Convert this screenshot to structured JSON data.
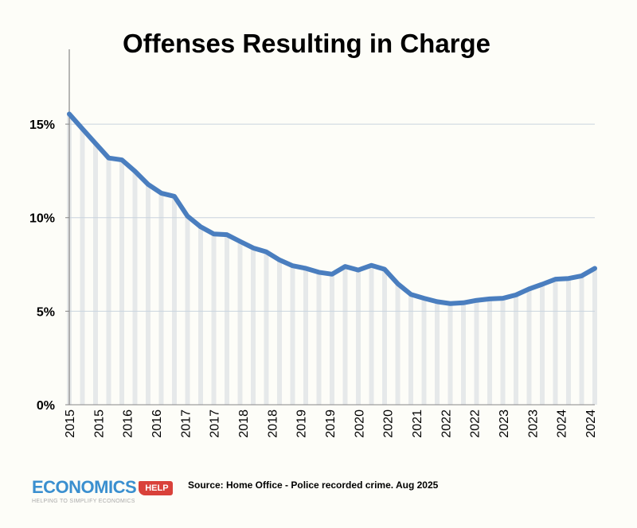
{
  "chart_data": {
    "type": "line",
    "title": "Offenses Resulting in Charge",
    "xlabel": "",
    "ylabel": "",
    "ylim": [
      0,
      19
    ],
    "yticks": [
      0,
      5,
      10,
      15
    ],
    "ytick_labels": [
      "0%",
      "5%",
      "10%",
      "15%"
    ],
    "xtick_labels": [
      "2015",
      "2015",
      "2016",
      "2016",
      "2017",
      "2017",
      "2018",
      "2018",
      "2019",
      "2019",
      "2020",
      "2020",
      "2021",
      "2022",
      "2022",
      "2023",
      "2023",
      "2024",
      "2024"
    ],
    "grid": true,
    "series": [
      {
        "name": "Offenses resulting in charge (%)",
        "color": "#4a7ebf",
        "values": [
          15.54,
          14.75,
          13.97,
          13.19,
          13.09,
          12.48,
          11.78,
          11.31,
          11.14,
          10.08,
          9.51,
          9.13,
          9.09,
          8.73,
          8.38,
          8.17,
          7.74,
          7.43,
          7.29,
          7.08,
          6.98,
          7.39,
          7.2,
          7.45,
          7.24,
          6.47,
          5.9,
          5.69,
          5.51,
          5.41,
          5.45,
          5.58,
          5.66,
          5.69,
          5.87,
          6.19,
          6.44,
          6.71,
          6.75,
          6.89,
          7.29
        ]
      }
    ]
  },
  "source": "Source: Home Office - Police recorded crime. Aug 2025",
  "logo": {
    "main": "ECONOMICS",
    "badge": "HELP",
    "tagline": "HELPING TO SIMPLIFY ECONOMICS"
  }
}
